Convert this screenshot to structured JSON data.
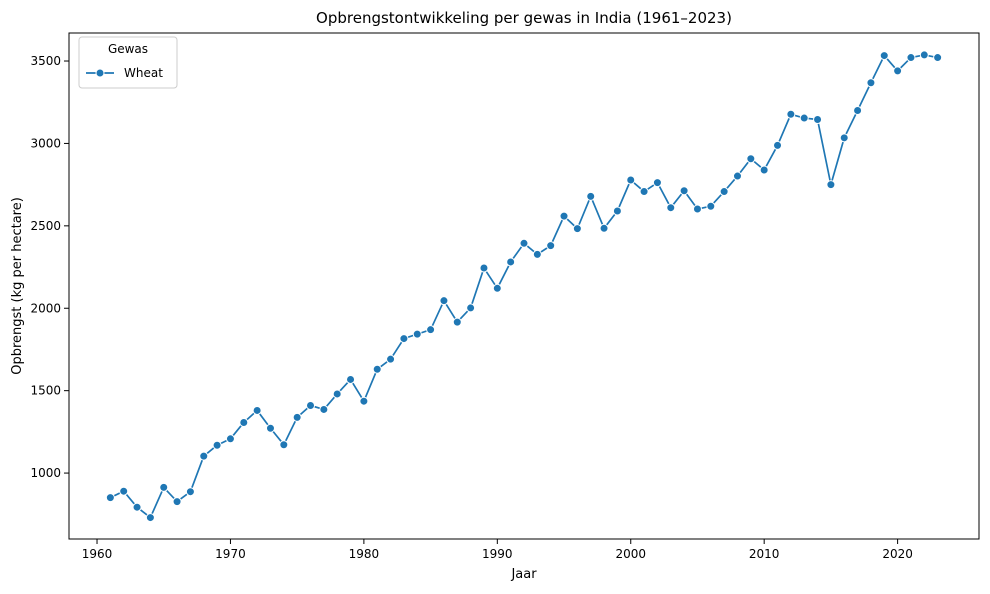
{
  "chart_data": {
    "type": "line",
    "title": "Opbrengstontwikkeling per gewas in India (1961–2023)",
    "xlabel": "Jaar",
    "ylabel": "Opbrengst (kg per hectare)",
    "xlim": [
      1957.9,
      2026.1
    ],
    "ylim": [
      600,
      3670
    ],
    "xticks": [
      1960,
      1970,
      1980,
      1990,
      2000,
      2010,
      2020
    ],
    "yticks": [
      1000,
      1500,
      2000,
      2500,
      3000,
      3500
    ],
    "grid": false,
    "legend": {
      "title": "Gewas",
      "placement": "top-left"
    },
    "series": [
      {
        "name": "Wheat",
        "color": "#1f77b4",
        "marker": "circle",
        "x": [
          1961,
          1962,
          1963,
          1964,
          1965,
          1966,
          1967,
          1968,
          1969,
          1970,
          1971,
          1972,
          1973,
          1974,
          1975,
          1976,
          1977,
          1978,
          1979,
          1980,
          1981,
          1982,
          1983,
          1984,
          1985,
          1986,
          1987,
          1988,
          1989,
          1990,
          1991,
          1992,
          1993,
          1994,
          1995,
          1996,
          1997,
          1998,
          1999,
          2000,
          2001,
          2002,
          2003,
          2004,
          2005,
          2006,
          2007,
          2008,
          2009,
          2010,
          2011,
          2012,
          2013,
          2014,
          2015,
          2016,
          2017,
          2018,
          2019,
          2020,
          2021,
          2022,
          2023
        ],
        "y": [
          851,
          890,
          793,
          730,
          913,
          827,
          887,
          1103,
          1169,
          1208,
          1307,
          1380,
          1272,
          1172,
          1338,
          1410,
          1386,
          1480,
          1568,
          1436,
          1630,
          1691,
          1816,
          1843,
          1870,
          2046,
          1916,
          2002,
          2244,
          2121,
          2281,
          2394,
          2327,
          2380,
          2559,
          2483,
          2679,
          2485,
          2590,
          2778,
          2708,
          2762,
          2610,
          2713,
          2602,
          2619,
          2708,
          2802,
          2907,
          2839,
          2988,
          3177,
          3154,
          3145,
          2750,
          3034,
          3200,
          3368,
          3533,
          3440,
          3521,
          3537,
          3521
        ]
      }
    ]
  }
}
